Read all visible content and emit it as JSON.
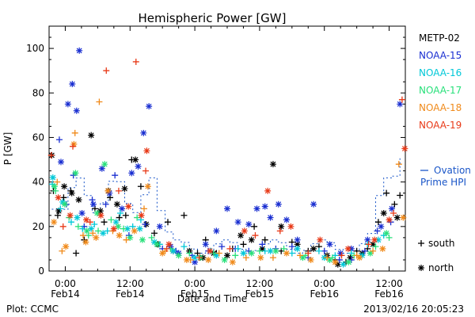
{
  "chart_data": {
    "type": "scatter",
    "title": "Hemispheric Power [GW]",
    "ylabel": "P [GW]",
    "xlabel": "Date and Time",
    "ylim": [
      0,
      110
    ],
    "yticks": [
      0,
      20,
      40,
      60,
      80,
      100
    ],
    "xlim_hours": [
      -3,
      63
    ],
    "xticks": [
      {
        "hour": 0,
        "time": "0:00",
        "date": "Feb14"
      },
      {
        "hour": 12,
        "time": "12:00",
        "date": "Feb14"
      },
      {
        "hour": 24,
        "time": "0:00",
        "date": "Feb15"
      },
      {
        "hour": 36,
        "time": "12:00",
        "date": "Feb15"
      },
      {
        "hour": 48,
        "time": "0:00",
        "date": "Feb16"
      },
      {
        "hour": 60,
        "time": "12:00",
        "date": "Feb16"
      }
    ],
    "legend_position": "right",
    "marker_legend": [
      {
        "symbol": "+",
        "label": "south"
      },
      {
        "symbol": "*",
        "label": "north"
      }
    ],
    "ovation": {
      "label_line1": "Ovation",
      "label_line2": "Prime HPI",
      "color": "#1a56c8"
    },
    "series": [
      {
        "name": "METP-02",
        "color": "#000000",
        "south": [
          [
            -2.2,
            36
          ],
          [
            -1.4,
            25
          ],
          [
            -0.3,
            33
          ],
          [
            1,
            36
          ],
          [
            2,
            8
          ],
          [
            3.5,
            14
          ],
          [
            5.5,
            28
          ],
          [
            7.2,
            22
          ],
          [
            8.3,
            33
          ],
          [
            10,
            24
          ],
          [
            11.2,
            25
          ],
          [
            12.3,
            50
          ],
          [
            14,
            38
          ],
          [
            16.5,
            17
          ],
          [
            19,
            22
          ],
          [
            22,
            25
          ],
          [
            24.5,
            8
          ],
          [
            26,
            14
          ],
          [
            28,
            8
          ],
          [
            31,
            10
          ],
          [
            33,
            12
          ],
          [
            35,
            20
          ],
          [
            37,
            14
          ],
          [
            40,
            9
          ],
          [
            42,
            13
          ],
          [
            45,
            9
          ],
          [
            47,
            11
          ],
          [
            50,
            5
          ],
          [
            52,
            4
          ],
          [
            54,
            9
          ],
          [
            56,
            10
          ],
          [
            58,
            22
          ],
          [
            59.5,
            35
          ],
          [
            61,
            30
          ],
          [
            62,
            34
          ]
        ],
        "north": [
          [
            -2.5,
            52
          ],
          [
            -1.2,
            27
          ],
          [
            -0.2,
            38
          ],
          [
            1.2,
            35
          ],
          [
            2.5,
            32
          ],
          [
            4.8,
            61
          ],
          [
            6.5,
            27
          ],
          [
            8,
            36
          ],
          [
            9.6,
            30
          ],
          [
            11,
            37
          ],
          [
            13,
            50
          ],
          [
            15,
            21
          ],
          [
            17.2,
            12
          ],
          [
            20,
            9
          ],
          [
            23,
            9
          ],
          [
            25.5,
            6
          ],
          [
            27.5,
            8
          ],
          [
            30,
            7
          ],
          [
            32.5,
            16
          ],
          [
            34.5,
            14
          ],
          [
            36.5,
            10
          ],
          [
            38.5,
            48
          ],
          [
            40,
            20
          ],
          [
            43,
            12
          ],
          [
            46,
            10
          ],
          [
            48.5,
            7
          ],
          [
            50.5,
            3
          ],
          [
            52.8,
            6
          ],
          [
            55,
            8
          ],
          [
            57,
            12
          ],
          [
            59,
            26
          ],
          [
            61.5,
            24
          ]
        ]
      },
      {
        "name": "NOAA-15",
        "color": "#1a2fd1",
        "south": [
          [
            -1.1,
            59
          ],
          [
            0.2,
            30
          ],
          [
            1.5,
            43
          ],
          [
            3.5,
            20
          ],
          [
            5,
            32
          ],
          [
            7.5,
            30
          ],
          [
            9.2,
            43
          ],
          [
            11.8,
            16
          ],
          [
            14.8,
            21
          ],
          [
            18,
            10
          ],
          [
            20.5,
            9
          ],
          [
            23.5,
            7
          ],
          [
            26.5,
            9
          ],
          [
            29,
            11
          ],
          [
            31.5,
            10
          ],
          [
            34,
            9
          ],
          [
            36.5,
            12
          ],
          [
            39,
            10
          ],
          [
            42,
            11
          ],
          [
            45,
            6
          ],
          [
            48,
            9
          ],
          [
            50.8,
            5
          ],
          [
            53,
            5
          ],
          [
            55.5,
            9
          ],
          [
            57.8,
            18
          ],
          [
            60.3,
            22
          ]
        ],
        "north": [
          [
            -0.8,
            49
          ],
          [
            0.5,
            75
          ],
          [
            1.3,
            84
          ],
          [
            2.1,
            72
          ],
          [
            2.6,
            99
          ],
          [
            3.1,
            26
          ],
          [
            5.2,
            30
          ],
          [
            6.8,
            46
          ],
          [
            8.2,
            35
          ],
          [
            10.5,
            28
          ],
          [
            12.3,
            44
          ],
          [
            13.5,
            47
          ],
          [
            14.5,
            62
          ],
          [
            15.5,
            74
          ],
          [
            17.5,
            20
          ],
          [
            19.5,
            11
          ],
          [
            21,
            8
          ],
          [
            24,
            4
          ],
          [
            26,
            12
          ],
          [
            28,
            18
          ],
          [
            30,
            28
          ],
          [
            32,
            22
          ],
          [
            34,
            21
          ],
          [
            35.5,
            28
          ],
          [
            37,
            29
          ],
          [
            38,
            24
          ],
          [
            39.5,
            30
          ],
          [
            41,
            23
          ],
          [
            43,
            14
          ],
          [
            46,
            30
          ],
          [
            49,
            12
          ],
          [
            51,
            8
          ],
          [
            53,
            10
          ],
          [
            56,
            14
          ],
          [
            58.5,
            20
          ],
          [
            60.5,
            28
          ],
          [
            62,
            75
          ]
        ]
      },
      {
        "name": "NOAA-16",
        "color": "#00c8d8",
        "south": [
          [
            -2.4,
            39
          ],
          [
            -0.9,
            28
          ],
          [
            1.1,
            22
          ],
          [
            3.2,
            19
          ],
          [
            5.4,
            21
          ],
          [
            7.8,
            18
          ],
          [
            10.2,
            26
          ],
          [
            12.5,
            20
          ],
          [
            14,
            23
          ],
          [
            17.5,
            12
          ],
          [
            22,
            11
          ],
          [
            27,
            9
          ],
          [
            32,
            10
          ],
          [
            37,
            9
          ],
          [
            42,
            8
          ],
          [
            47,
            9
          ],
          [
            50,
            7
          ],
          [
            53,
            8
          ],
          [
            56,
            12
          ],
          [
            59,
            16
          ]
        ],
        "north": [
          [
            -2.3,
            42
          ],
          [
            -0.5,
            31
          ],
          [
            2.2,
            24
          ],
          [
            4.8,
            19
          ],
          [
            7,
            17
          ],
          [
            9.4,
            22
          ],
          [
            11.5,
            19
          ],
          [
            13.8,
            19
          ],
          [
            16.5,
            13
          ],
          [
            20,
            9
          ],
          [
            24,
            6
          ],
          [
            28,
            7
          ],
          [
            33,
            8
          ],
          [
            38,
            9
          ],
          [
            43,
            10
          ],
          [
            48,
            6
          ],
          [
            51.5,
            3
          ],
          [
            55,
            7
          ],
          [
            58,
            14
          ]
        ]
      },
      {
        "name": "NOAA-17",
        "color": "#28e07a",
        "south": [
          [
            -1.8,
            36
          ],
          [
            0.7,
            24
          ],
          [
            2.4,
            20
          ],
          [
            4.3,
            16
          ],
          [
            6.1,
            18
          ],
          [
            8.5,
            23
          ],
          [
            10.8,
            19
          ],
          [
            13.3,
            24
          ],
          [
            16,
            15
          ],
          [
            19.5,
            10
          ],
          [
            23,
            8
          ],
          [
            27.5,
            8
          ],
          [
            31.5,
            7
          ],
          [
            36,
            9
          ],
          [
            40.5,
            10
          ],
          [
            44.5,
            7
          ],
          [
            49.5,
            6
          ],
          [
            53.5,
            7
          ],
          [
            57.5,
            11
          ],
          [
            60,
            15
          ]
        ],
        "north": [
          [
            -2,
            38
          ],
          [
            -0.1,
            30
          ],
          [
            1.9,
            44
          ],
          [
            4,
            18
          ],
          [
            5.9,
            26
          ],
          [
            7.3,
            48
          ],
          [
            9.8,
            20
          ],
          [
            12,
            15
          ],
          [
            14.3,
            14
          ],
          [
            17,
            12
          ],
          [
            21,
            7
          ],
          [
            25,
            6
          ],
          [
            29.5,
            5
          ],
          [
            34.5,
            8
          ],
          [
            39,
            9
          ],
          [
            44,
            6
          ],
          [
            49,
            5
          ],
          [
            52.5,
            4
          ],
          [
            56.5,
            8
          ],
          [
            59.5,
            17
          ]
        ]
      },
      {
        "name": "NOAA-18",
        "color": "#f08a1a",
        "south": [
          [
            -1.5,
            40
          ],
          [
            -0.6,
            9
          ],
          [
            1.8,
            62
          ],
          [
            3.3,
            16
          ],
          [
            5.1,
            17
          ],
          [
            6.3,
            76
          ],
          [
            8.8,
            18
          ],
          [
            11.3,
            14
          ],
          [
            14.6,
            28
          ],
          [
            18.5,
            9
          ],
          [
            23.2,
            5
          ],
          [
            28.5,
            8
          ],
          [
            33.5,
            6
          ],
          [
            38.5,
            6
          ],
          [
            43.5,
            7
          ],
          [
            48.5,
            6
          ],
          [
            54,
            7
          ],
          [
            57,
            9
          ],
          [
            61.8,
            48
          ]
        ],
        "north": [
          [
            -2.1,
            22
          ],
          [
            0.1,
            11
          ],
          [
            1.6,
            57
          ],
          [
            3.8,
            13
          ],
          [
            5.7,
            15
          ],
          [
            7.9,
            36
          ],
          [
            10,
            16
          ],
          [
            12.8,
            18
          ],
          [
            15.3,
            38
          ],
          [
            18,
            8
          ],
          [
            22.5,
            5
          ],
          [
            26.5,
            5
          ],
          [
            31,
            4
          ],
          [
            36.2,
            6
          ],
          [
            41,
            8
          ],
          [
            45.5,
            5
          ],
          [
            50,
            4
          ],
          [
            54.5,
            6
          ],
          [
            58.8,
            10
          ],
          [
            62.6,
            24
          ]
        ]
      },
      {
        "name": "NOAA-19",
        "color": "#e83a18",
        "south": [
          [
            -2.6,
            52
          ],
          [
            -0.4,
            20
          ],
          [
            1.4,
            56
          ],
          [
            4.6,
            22
          ],
          [
            7.6,
            90
          ],
          [
            9.9,
            36
          ],
          [
            13.1,
            94
          ],
          [
            14.9,
            45
          ],
          [
            18.8,
            10
          ],
          [
            24.8,
            6
          ],
          [
            30.5,
            10
          ],
          [
            35.2,
            16
          ],
          [
            39.8,
            18
          ],
          [
            45,
            8
          ],
          [
            51.2,
            7
          ],
          [
            56.2,
            12
          ],
          [
            60.8,
            26
          ],
          [
            62.4,
            77
          ]
        ],
        "north": [
          [
            -1.3,
            33
          ],
          [
            0.9,
            25
          ],
          [
            3.9,
            23
          ],
          [
            6.6,
            25
          ],
          [
            9,
            19
          ],
          [
            11.7,
            29
          ],
          [
            14.1,
            25
          ],
          [
            15.1,
            54
          ],
          [
            19.2,
            12
          ],
          [
            26.8,
            9
          ],
          [
            33.2,
            18
          ],
          [
            37.5,
            36
          ],
          [
            41.8,
            20
          ],
          [
            47.2,
            14
          ],
          [
            52.4,
            10
          ],
          [
            57.3,
            14
          ],
          [
            60,
            23
          ],
          [
            62.9,
            55
          ]
        ]
      }
    ]
  },
  "footer": {
    "plot_source": "Plot: CCMC",
    "timestamp": "2013/02/16 20:05:23"
  }
}
